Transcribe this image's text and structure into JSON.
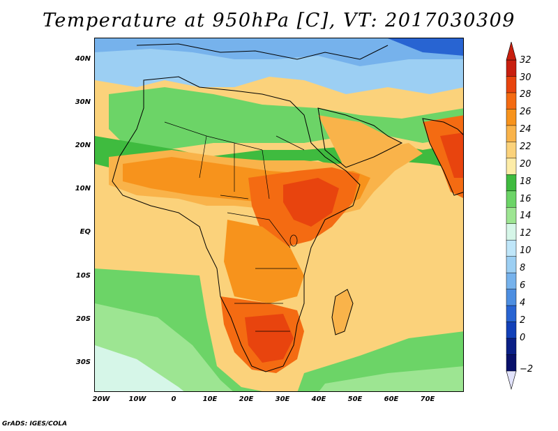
{
  "title": "Temperature at 950hPa [C], VT: 2017030309",
  "credit": "GrADS: IGES/COLA",
  "lat_labels": [
    "40N",
    "30N",
    "20N",
    "10N",
    "EQ",
    "10S",
    "20S",
    "30S"
  ],
  "lon_labels": [
    "20W",
    "10W",
    "0",
    "10E",
    "20E",
    "30E",
    "40E",
    "50E",
    "60E",
    "70E"
  ],
  "colorbar": {
    "labels": [
      "32",
      "30",
      "28",
      "26",
      "24",
      "22",
      "20",
      "18",
      "16",
      "14",
      "12",
      "10",
      "8",
      "6",
      "4",
      "2",
      "0",
      "−2"
    ],
    "colors": [
      "#c81f0f",
      "#e8440e",
      "#f46b12",
      "#f7931c",
      "#f9b34a",
      "#fbd27b",
      "#fdeca7",
      "#3fbb3f",
      "#6cd467",
      "#9de592",
      "#d6f6e8",
      "#bfe6f9",
      "#9ccff3",
      "#76b2ec",
      "#4d8ee1",
      "#2864d2",
      "#1240b8",
      "#0a1f86",
      "#08106a"
    ],
    "over_color": "#c81f0f",
    "under_color": "#e2e3fb"
  },
  "map_colors": {
    "ocean_warm": "#fbd27b",
    "ocean_cool": "#9de592",
    "ocean_green": "#3fbb3f",
    "north_blue": "#76b2ec",
    "hot": "#e8440e",
    "very_hot": "#c81f0f",
    "orange": "#f7931c",
    "lightorange": "#f9b34a"
  }
}
